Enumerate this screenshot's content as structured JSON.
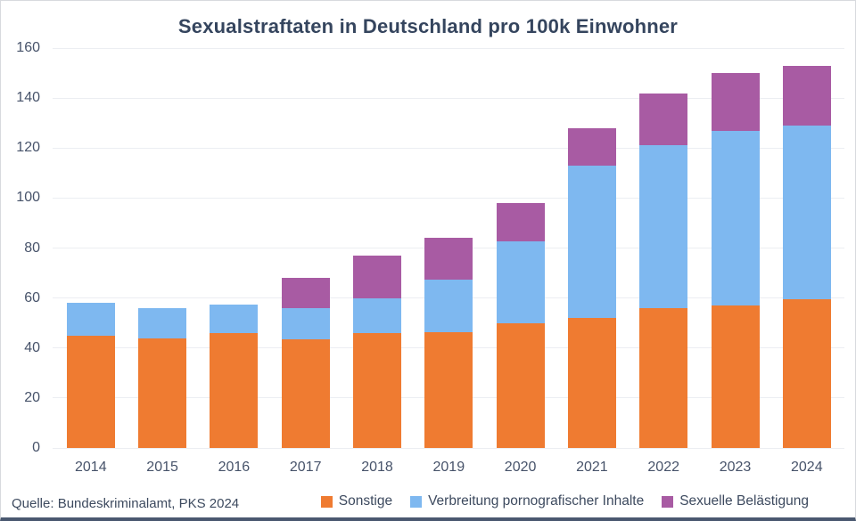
{
  "source": "Quelle: Bundeskriminalamt, PKS 2024",
  "colors": {
    "sonstige": "#ef7b31",
    "verbreitung": "#7eb8f0",
    "belaestigung": "#a85ba3",
    "title_text": "#35455e",
    "tick_text": "#47536a",
    "gridline": "#eceef2",
    "background": "#ffffff"
  },
  "chart_data": {
    "type": "bar",
    "stacked": true,
    "title": "Sexualstraftaten in Deutschland pro 100k Einwohner",
    "xlabel": "",
    "ylabel": "",
    "categories": [
      "2014",
      "2015",
      "2016",
      "2017",
      "2018",
      "2019",
      "2020",
      "2021",
      "2022",
      "2023",
      "2024"
    ],
    "series": [
      {
        "name": "Sonstige",
        "color": "#ef7b31",
        "values": [
          45,
          44,
          46,
          43.5,
          46,
          46.5,
          50,
          52,
          56,
          57,
          59.5
        ]
      },
      {
        "name": "Verbreitung pornografischer Inhalte",
        "color": "#7eb8f0",
        "values": [
          13,
          12,
          11.5,
          12.5,
          14,
          21,
          32.5,
          61,
          65,
          70,
          69.5
        ]
      },
      {
        "name": "Sexuelle Belästigung",
        "color": "#a85ba3",
        "values": [
          0,
          0,
          0,
          12,
          17,
          16.5,
          15.5,
          15,
          21,
          23,
          24
        ]
      }
    ],
    "totals": [
      58,
      56,
      57.5,
      68,
      77,
      84,
      98,
      128,
      142,
      150,
      153
    ],
    "ylim": [
      0,
      160
    ],
    "yticks": [
      0,
      20,
      40,
      60,
      80,
      100,
      120,
      140,
      160
    ],
    "grid": true,
    "legend_position": "bottom"
  }
}
